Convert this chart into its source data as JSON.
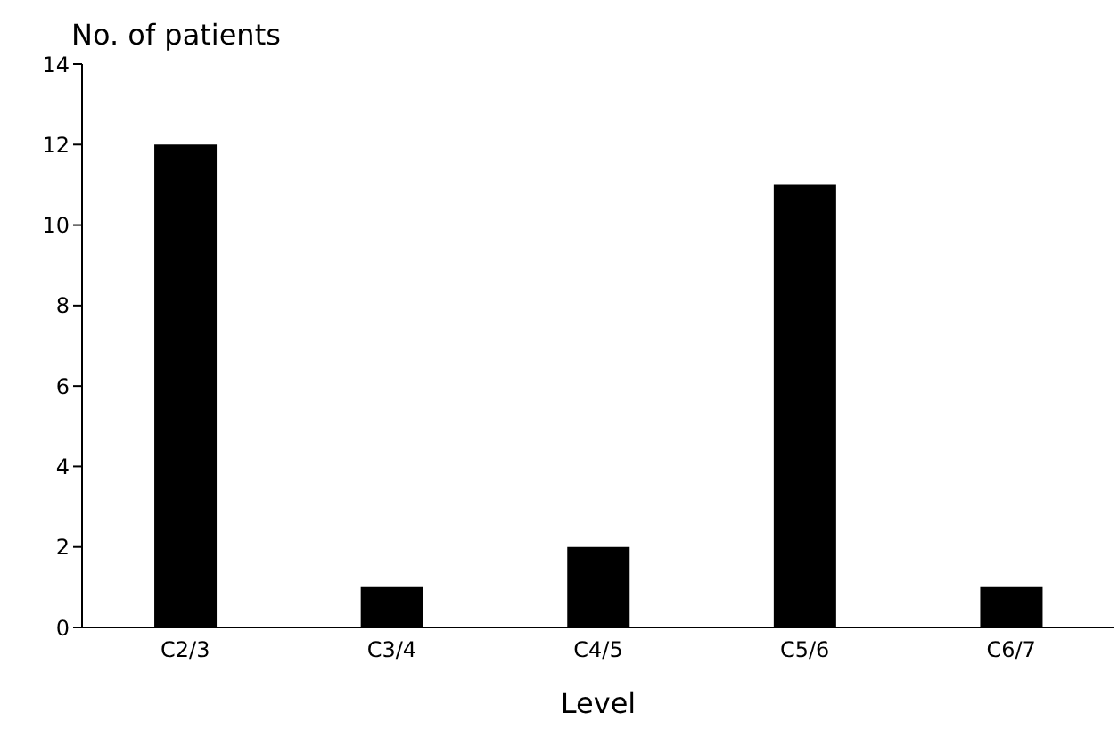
{
  "chart_data": {
    "type": "bar",
    "ylabel": "No. of patients",
    "xlabel": "Level",
    "categories": [
      "C2/3",
      "C3/4",
      "C4/5",
      "C5/6",
      "C6/7"
    ],
    "values": [
      12,
      1,
      2,
      11,
      1
    ],
    "color": "#000000",
    "ylim": [
      0,
      14
    ],
    "yticks": [
      0,
      2,
      4,
      6,
      8,
      10,
      12,
      14
    ],
    "grid": false,
    "legend": false
  }
}
